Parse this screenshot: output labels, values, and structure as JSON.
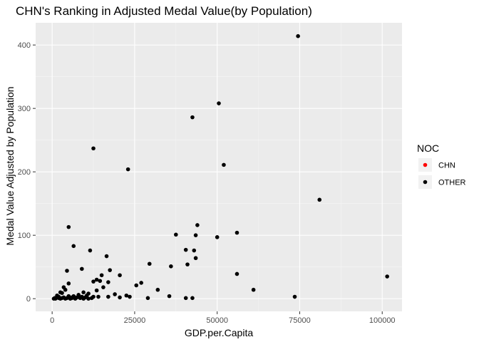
{
  "chart_data": {
    "type": "scatter",
    "title": "CHN's Ranking in Adjusted Medal Value(by Population)",
    "xlabel": "GDP.per.Capita",
    "ylabel": "Medal Value Adjusted by Population",
    "xlim": [
      -5000,
      106000
    ],
    "ylim": [
      -20,
      435
    ],
    "x_ticks": [
      0,
      25000,
      50000,
      75000,
      100000
    ],
    "x_tick_labels": [
      "0",
      "25000",
      "50000",
      "75000",
      "100000"
    ],
    "y_ticks": [
      0,
      100,
      200,
      300,
      400
    ],
    "y_tick_labels": [
      "0",
      "100",
      "200",
      "300",
      "400"
    ],
    "grid": true,
    "legend": {
      "title": "NOC",
      "placement": "right",
      "entries": [
        {
          "label": "CHN",
          "color": "#ff0000"
        },
        {
          "label": "OTHER",
          "color": "#000000"
        }
      ]
    },
    "colors": {
      "panel": "#ebebeb",
      "grid_major": "#ffffff",
      "grid_minor": "#f5f5f5",
      "point": "#000000"
    },
    "series": [
      {
        "name": "OTHER",
        "points": [
          [
            74500,
            414
          ],
          [
            50500,
            308
          ],
          [
            42500,
            286
          ],
          [
            12500,
            237
          ],
          [
            23000,
            204
          ],
          [
            52000,
            211
          ],
          [
            81000,
            156
          ],
          [
            101500,
            35
          ],
          [
            44000,
            116
          ],
          [
            5000,
            113
          ],
          [
            37500,
            101
          ],
          [
            43500,
            100
          ],
          [
            56000,
            104
          ],
          [
            50000,
            97
          ],
          [
            6500,
            83
          ],
          [
            11500,
            76
          ],
          [
            40500,
            77
          ],
          [
            43000,
            76
          ],
          [
            16500,
            67
          ],
          [
            43500,
            64
          ],
          [
            29500,
            55
          ],
          [
            41000,
            54
          ],
          [
            36000,
            51
          ],
          [
            9000,
            47
          ],
          [
            17500,
            45
          ],
          [
            4500,
            44
          ],
          [
            56000,
            39
          ],
          [
            15000,
            37
          ],
          [
            20500,
            37
          ],
          [
            27000,
            25
          ],
          [
            13500,
            30
          ],
          [
            14500,
            28
          ],
          [
            12500,
            27
          ],
          [
            17000,
            26
          ],
          [
            5000,
            24
          ],
          [
            25500,
            21
          ],
          [
            15500,
            18
          ],
          [
            3500,
            18
          ],
          [
            4000,
            14
          ],
          [
            32000,
            14
          ],
          [
            61000,
            14
          ],
          [
            13500,
            13
          ],
          [
            2500,
            10
          ],
          [
            3000,
            9
          ],
          [
            9500,
            10
          ],
          [
            11000,
            8
          ],
          [
            19000,
            7
          ],
          [
            8000,
            6
          ],
          [
            10500,
            5
          ],
          [
            22500,
            5
          ],
          [
            35500,
            4
          ],
          [
            73500,
            3
          ],
          [
            23500,
            3
          ],
          [
            1500,
            5
          ],
          [
            5000,
            4
          ],
          [
            6500,
            4
          ],
          [
            9000,
            3
          ],
          [
            14000,
            3
          ],
          [
            17000,
            3
          ],
          [
            20500,
            2
          ],
          [
            29000,
            1
          ],
          [
            40500,
            1
          ],
          [
            42500,
            1
          ],
          [
            500,
            0
          ],
          [
            1000,
            0
          ],
          [
            2000,
            1
          ],
          [
            2500,
            0
          ],
          [
            3000,
            1
          ],
          [
            4000,
            0
          ],
          [
            4500,
            1
          ],
          [
            5500,
            0
          ],
          [
            6000,
            1
          ],
          [
            7000,
            0
          ],
          [
            8500,
            1
          ],
          [
            9500,
            0
          ],
          [
            11000,
            0
          ],
          [
            12000,
            1
          ],
          [
            1500,
            2
          ],
          [
            2000,
            3
          ],
          [
            3500,
            2
          ],
          [
            6000,
            2
          ],
          [
            7500,
            2
          ],
          [
            10000,
            2
          ],
          [
            12500,
            3
          ],
          [
            800,
            1
          ]
        ]
      },
      {
        "name": "CHN",
        "points": []
      }
    ]
  }
}
